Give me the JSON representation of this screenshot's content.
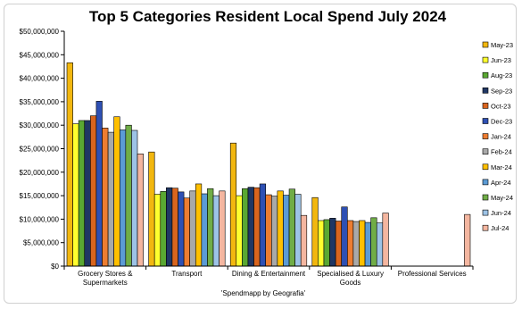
{
  "chart_data": {
    "type": "bar",
    "title": "Top 5 Categories Resident Local Spend July 2024",
    "xlabel": "'Spendmapp by Geografia'",
    "ylabel": "",
    "ylim": [
      0,
      50000000
    ],
    "y_ticks": [
      "$0",
      "$5,000,000",
      "$10,000,000",
      "$15,000,000",
      "$20,000,000",
      "$25,000,000",
      "$30,000,000",
      "$35,000,000",
      "$40,000,000",
      "$45,000,000",
      "$50,000,000"
    ],
    "categories": [
      [
        "Grocery Stores &",
        "Supermarkets"
      ],
      [
        "Transport"
      ],
      [
        "Dining & Entertainment"
      ],
      [
        "Specialised & Luxury",
        "Goods"
      ],
      [
        "Professional Services"
      ]
    ],
    "grid": false,
    "legend_position": "right",
    "series": [
      {
        "name": "May-23",
        "color": "#f2b70f",
        "values": [
          43300000,
          24300000,
          26200000,
          14600000,
          null
        ]
      },
      {
        "name": "Jun-23",
        "color": "#ffff2e",
        "values": [
          30300000,
          15300000,
          15000000,
          9700000,
          null
        ]
      },
      {
        "name": "Aug-23",
        "color": "#5aa832",
        "values": [
          31000000,
          15900000,
          16500000,
          9900000,
          null
        ]
      },
      {
        "name": "Sep-23",
        "color": "#203764",
        "values": [
          31000000,
          16700000,
          16800000,
          10200000,
          null
        ]
      },
      {
        "name": "Oct-23",
        "color": "#d9651e",
        "values": [
          32000000,
          16600000,
          16700000,
          9600000,
          null
        ]
      },
      {
        "name": "Dec-23",
        "color": "#2e50b4",
        "values": [
          35100000,
          15800000,
          17500000,
          12600000,
          null
        ]
      },
      {
        "name": "Jan-24",
        "color": "#ed7d31",
        "values": [
          29400000,
          14500000,
          15200000,
          9700000,
          null
        ]
      },
      {
        "name": "Feb-24",
        "color": "#a9a9a9",
        "values": [
          28500000,
          16000000,
          14900000,
          9500000,
          null
        ]
      },
      {
        "name": "Mar-24",
        "color": "#ffc000",
        "values": [
          31800000,
          17500000,
          16000000,
          9700000,
          null
        ]
      },
      {
        "name": "Apr-24",
        "color": "#5b9bd5",
        "values": [
          29000000,
          15400000,
          15100000,
          9300000,
          null
        ]
      },
      {
        "name": "May-24",
        "color": "#70ad47",
        "values": [
          30000000,
          16500000,
          16400000,
          10300000,
          null
        ]
      },
      {
        "name": "Jun-24",
        "color": "#9dc3e6",
        "values": [
          28900000,
          15000000,
          15300000,
          9200000,
          null
        ]
      },
      {
        "name": "Jul-24",
        "color": "#f4b6a0",
        "values": [
          23900000,
          16000000,
          10800000,
          11300000,
          11000000
        ]
      }
    ]
  }
}
